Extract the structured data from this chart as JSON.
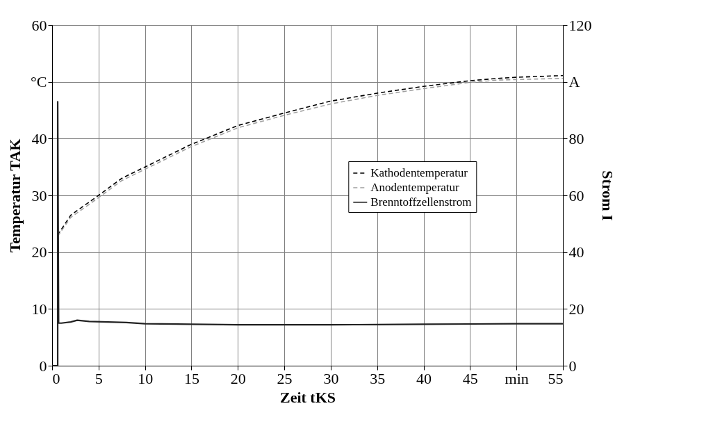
{
  "chart_data": {
    "type": "line",
    "xlabel": "Zeit tKS",
    "ylabel": "Temperatur TAK",
    "y2label": "Strom I",
    "xlim": [
      0,
      55
    ],
    "xticks": [
      0,
      5,
      10,
      15,
      20,
      25,
      30,
      35,
      40,
      45,
      {
        "value": 50,
        "label": "min"
      },
      55
    ],
    "ylim": [
      0,
      60
    ],
    "yticks": [
      0,
      10,
      20,
      30,
      40,
      {
        "value": 50,
        "label": "°C"
      },
      60
    ],
    "y2lim": [
      0,
      120
    ],
    "y2ticks": [
      0,
      20,
      40,
      60,
      80,
      {
        "value": 100,
        "label": "A"
      },
      120
    ],
    "grid": true,
    "legend": "right",
    "series": [
      {
        "name": "Kathodentemperatur",
        "color": "#000000",
        "line_style": "dashed",
        "x": [
          0.6,
          2,
          5,
          7.5,
          10,
          15,
          20,
          25,
          30,
          35,
          40,
          45,
          48,
          50,
          55
        ],
        "values": [
          23,
          26.5,
          30,
          33,
          35,
          39,
          42.3,
          44.5,
          46.6,
          48,
          49.2,
          50.2,
          50.6,
          50.8,
          51.1
        ]
      },
      {
        "name": "Anodentemperatur",
        "color": "#a0a0a0",
        "line_style": "dashed",
        "x": [
          0.6,
          2,
          5,
          7.5,
          10,
          15,
          20,
          25,
          30,
          35,
          40,
          45,
          48,
          50,
          55
        ],
        "values": [
          22.8,
          26.1,
          29.6,
          32.6,
          34.6,
          38.6,
          41.9,
          44.1,
          46.1,
          47.6,
          48.8,
          49.9,
          50.3,
          50.4,
          50.6
        ]
      },
      {
        "name": "Brenntoffzellenstrom",
        "color": "#222222",
        "line_style": "solid",
        "axis": "y2",
        "x": [
          0,
          0.6,
          0.6,
          0.7,
          1,
          2,
          2.7,
          4,
          6,
          8,
          10,
          15,
          20,
          25,
          30,
          35,
          40,
          45,
          50,
          55
        ],
        "values": [
          0,
          0,
          93,
          15,
          15,
          15.4,
          16,
          15.6,
          15.4,
          15.2,
          14.8,
          14.6,
          14.4,
          14.4,
          14.4,
          14.5,
          14.6,
          14.7,
          14.8,
          14.8
        ]
      }
    ]
  }
}
